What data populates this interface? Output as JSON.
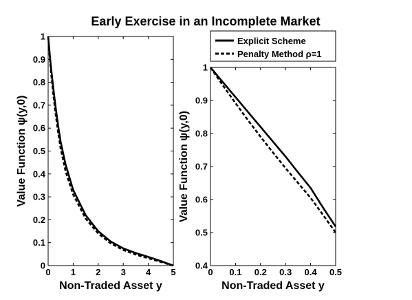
{
  "title": "Early Exercise in an Incomplete Market",
  "legend": {
    "placement": "top-right, above right panel",
    "entries": [
      {
        "label": "Explicit Scheme",
        "style": "solid"
      },
      {
        "label": "Penalty Method ρ=1",
        "style": "dashed"
      }
    ]
  },
  "chart_data": [
    {
      "type": "line",
      "xlabel": "Non-Traded Asset y",
      "ylabel": "Value Function ψ(y,0)",
      "xlim": [
        0,
        5
      ],
      "ylim": [
        0,
        1
      ],
      "xticks": [
        "0",
        "1",
        "2",
        "3",
        "4",
        "5"
      ],
      "yticks": [
        "0",
        "0.1",
        "0.2",
        "0.3",
        "0.4",
        "0.5",
        "0.6",
        "0.7",
        "0.8",
        "0.9",
        "1"
      ],
      "grid": false,
      "series": [
        {
          "name": "Explicit Scheme",
          "x": [
            0,
            0.1,
            0.2,
            0.3,
            0.4,
            0.5,
            0.7,
            1.0,
            1.5,
            2.0,
            2.5,
            3.0,
            3.5,
            4.0,
            4.5,
            5.0
          ],
          "y": [
            1.0,
            0.88,
            0.78,
            0.69,
            0.61,
            0.54,
            0.44,
            0.33,
            0.22,
            0.15,
            0.105,
            0.075,
            0.055,
            0.038,
            0.02,
            0.0
          ]
        },
        {
          "name": "Penalty Method ρ=1",
          "x": [
            0,
            0.1,
            0.2,
            0.3,
            0.4,
            0.5,
            0.7,
            1.0,
            1.5,
            2.0,
            2.5,
            3.0,
            3.5,
            4.0,
            4.5,
            5.0
          ],
          "y": [
            1.0,
            0.86,
            0.75,
            0.66,
            0.58,
            0.51,
            0.41,
            0.31,
            0.205,
            0.14,
            0.097,
            0.068,
            0.048,
            0.032,
            0.016,
            0.0
          ]
        }
      ]
    },
    {
      "type": "line",
      "xlabel": "Non-Traded Asset y",
      "ylabel": "Value Function ψ(y,0)",
      "xlim": [
        0,
        0.5
      ],
      "ylim": [
        0.4,
        1
      ],
      "xticks": [
        "0",
        "0.1",
        "0.2",
        "0.3",
        "0.4",
        "0.5"
      ],
      "yticks": [
        "0.4",
        "0.5",
        "0.6",
        "0.7",
        "0.8",
        "0.9",
        "1"
      ],
      "grid": false,
      "series": [
        {
          "name": "Explicit Scheme",
          "x": [
            0,
            0.05,
            0.1,
            0.15,
            0.2,
            0.25,
            0.3,
            0.35,
            0.4,
            0.45,
            0.5
          ],
          "y": [
            1.0,
            0.955,
            0.91,
            0.865,
            0.82,
            0.775,
            0.73,
            0.682,
            0.635,
            0.575,
            0.518
          ]
        },
        {
          "name": "Penalty Method ρ=1",
          "x": [
            0,
            0.05,
            0.1,
            0.15,
            0.2,
            0.25,
            0.3,
            0.35,
            0.4,
            0.45,
            0.5
          ],
          "y": [
            1.0,
            0.945,
            0.892,
            0.84,
            0.79,
            0.742,
            0.695,
            0.65,
            0.605,
            0.553,
            0.5
          ]
        }
      ]
    }
  ]
}
